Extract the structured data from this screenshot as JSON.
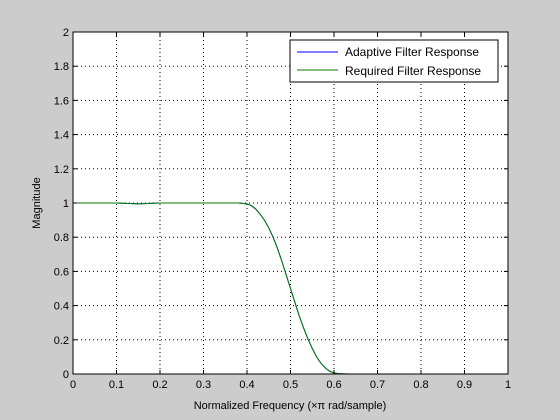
{
  "chart_data": {
    "type": "line",
    "xlabel": "Normalized Frequency  (×π rad/sample)",
    "ylabel": "Magnitude",
    "xlim": [
      0,
      1
    ],
    "ylim": [
      0,
      2
    ],
    "xticks": [
      "0",
      "0.1",
      "0.2",
      "0.3",
      "0.4",
      "0.5",
      "0.6",
      "0.7",
      "0.8",
      "0.9",
      "1"
    ],
    "yticks": [
      "0",
      "0.2",
      "0.4",
      "0.6",
      "0.8",
      "1",
      "1.2",
      "1.4",
      "1.6",
      "1.8",
      "2"
    ],
    "grid": true,
    "legend_position": "top-right",
    "x": [
      0,
      0.05,
      0.1,
      0.15,
      0.2,
      0.25,
      0.3,
      0.35,
      0.38,
      0.4,
      0.41,
      0.42,
      0.43,
      0.44,
      0.45,
      0.46,
      0.47,
      0.48,
      0.49,
      0.5,
      0.51,
      0.52,
      0.53,
      0.54,
      0.55,
      0.56,
      0.57,
      0.58,
      0.59,
      0.6,
      0.61,
      0.62,
      0.64,
      0.7,
      0.8,
      0.9,
      1
    ],
    "series": [
      {
        "name": "Adaptive Filter Response",
        "color": "#0000ff",
        "values": [
          1.0,
          1.0,
          1.0,
          0.995,
          1.0,
          1.0,
          1.0,
          1.0,
          1.0,
          0.995,
          0.985,
          0.965,
          0.935,
          0.9,
          0.855,
          0.8,
          0.735,
          0.66,
          0.58,
          0.5,
          0.42,
          0.34,
          0.27,
          0.205,
          0.15,
          0.1,
          0.063,
          0.035,
          0.016,
          0.006,
          0.002,
          0.001,
          0.0,
          0.0,
          0.0,
          0.0,
          0.0
        ]
      },
      {
        "name": "Required Filter Response",
        "color": "#007f00",
        "values": [
          1.0,
          1.0,
          1.0,
          0.995,
          1.0,
          1.0,
          1.0,
          1.0,
          1.0,
          0.995,
          0.985,
          0.965,
          0.935,
          0.9,
          0.855,
          0.8,
          0.735,
          0.66,
          0.58,
          0.5,
          0.42,
          0.34,
          0.27,
          0.205,
          0.15,
          0.1,
          0.063,
          0.035,
          0.016,
          0.006,
          0.002,
          0.001,
          0.0,
          0.0,
          0.0,
          0.0,
          0.0
        ]
      }
    ]
  }
}
